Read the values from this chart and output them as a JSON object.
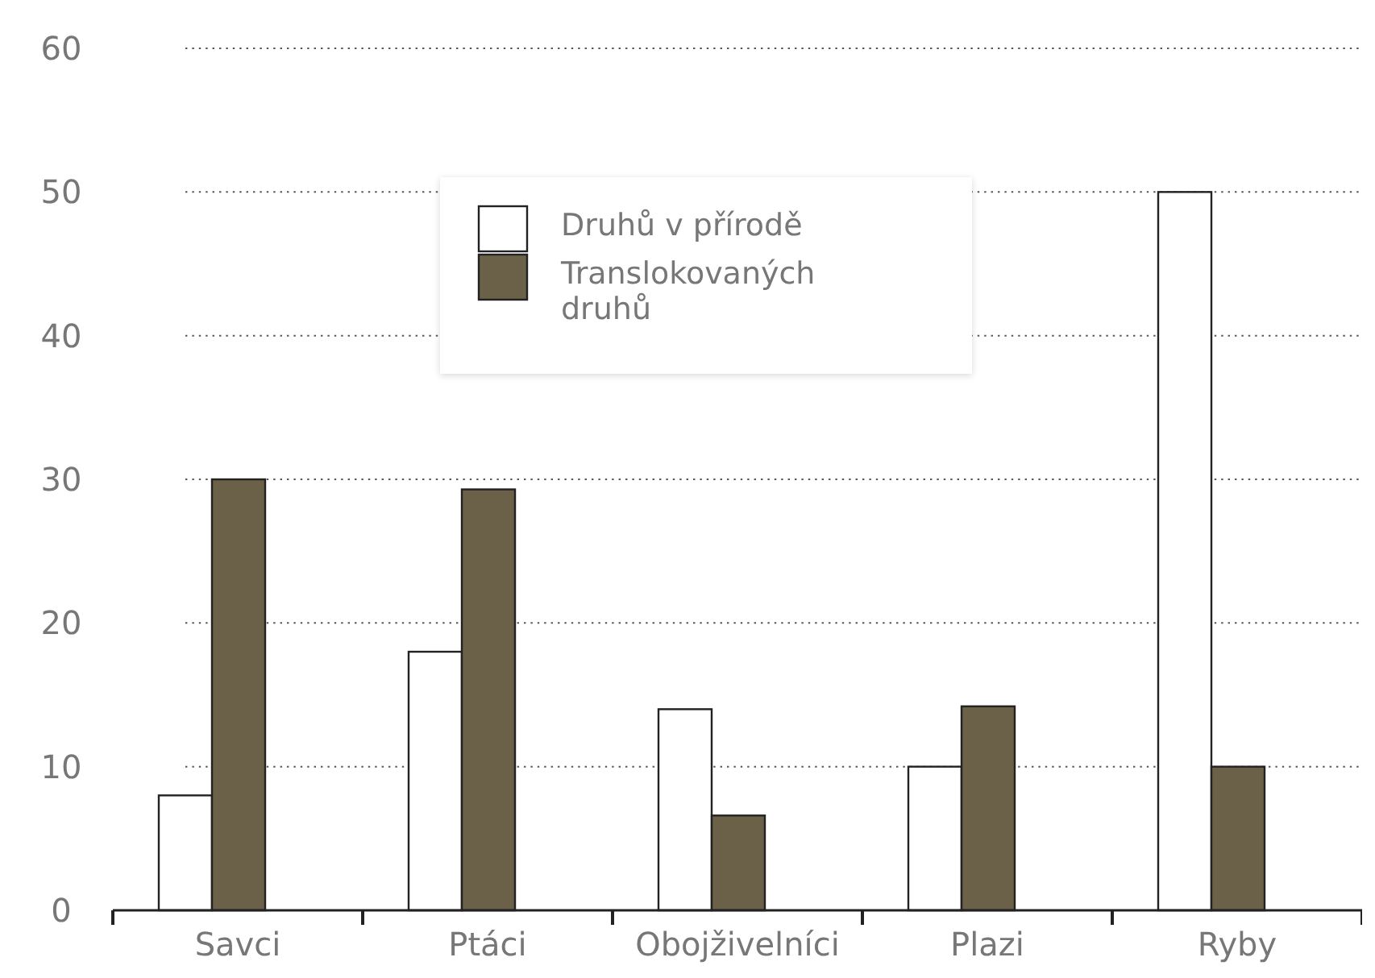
{
  "chart_data": {
    "type": "bar",
    "categories": [
      "Savci",
      "Ptáci",
      "Obojživelníci",
      "Plazi",
      "Ryby"
    ],
    "series": [
      {
        "name": "Druhů v přírodě",
        "color": "#ffffff",
        "values": [
          8,
          18,
          14,
          10,
          50
        ]
      },
      {
        "name": "Translokovaných druhů",
        "color": "#6b6048",
        "values": [
          30,
          29.3,
          6.6,
          14.2,
          10
        ]
      }
    ],
    "ylim": [
      0,
      60
    ],
    "yticks": [
      0,
      10,
      20,
      30,
      40,
      50,
      60
    ],
    "grid": "y",
    "legend": "top"
  }
}
